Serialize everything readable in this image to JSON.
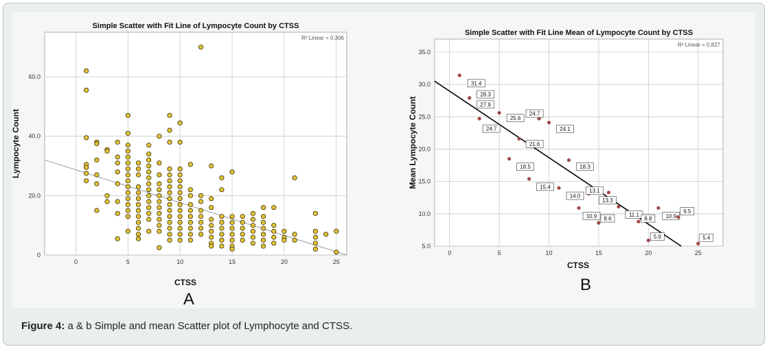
{
  "figure": {
    "caption_label": "Figure 4:",
    "caption_text": " a & b Simple and mean Scatter plot of Lymphocyte and CTSS.",
    "panel_a_letter": "A",
    "panel_b_letter": "B"
  },
  "colors": {
    "frame_bg": "#e9efeb",
    "plot_a_point": "#e0c23a",
    "plot_b_point": "#a04848",
    "grid": "#c8c8c8"
  },
  "chart_data": [
    {
      "type": "scatter",
      "title": "Simple Scatter with Fit Line of Lympocyte Count by CTSS",
      "xlabel": "CTSS",
      "ylabel": "Lympocyte Count",
      "xlim": [
        -3,
        26
      ],
      "ylim": [
        0,
        75
      ],
      "xticks": [
        0,
        5,
        10,
        15,
        20,
        25
      ],
      "yticks": [
        0,
        20,
        40,
        60
      ],
      "ytick_labels": [
        "0",
        "20.0",
        "40.0",
        "60.0"
      ],
      "grid": true,
      "annotation": "R² Linear = 0.306",
      "fit_line": {
        "x": [
          -3,
          26
        ],
        "y": [
          32,
          0
        ]
      },
      "points": [
        [
          1,
          62
        ],
        [
          1,
          55.5
        ],
        [
          1,
          39.5
        ],
        [
          1,
          30.5
        ],
        [
          1,
          29.5
        ],
        [
          1,
          27.5
        ],
        [
          1,
          25
        ],
        [
          2,
          38
        ],
        [
          2,
          37.5
        ],
        [
          2,
          32
        ],
        [
          2,
          27
        ],
        [
          2,
          24
        ],
        [
          2,
          15
        ],
        [
          3,
          35.5
        ],
        [
          3,
          35
        ],
        [
          3,
          20
        ],
        [
          3,
          18
        ],
        [
          4,
          38
        ],
        [
          4,
          33
        ],
        [
          4,
          31
        ],
        [
          4,
          28
        ],
        [
          4,
          24
        ],
        [
          4,
          18
        ],
        [
          4,
          14
        ],
        [
          4,
          5.5
        ],
        [
          5,
          47
        ],
        [
          5,
          41
        ],
        [
          5,
          37
        ],
        [
          5,
          35
        ],
        [
          5,
          33
        ],
        [
          5,
          31
        ],
        [
          5,
          29
        ],
        [
          5,
          27
        ],
        [
          5,
          25
        ],
        [
          5,
          23
        ],
        [
          5,
          21
        ],
        [
          5,
          19
        ],
        [
          5,
          17
        ],
        [
          5,
          15
        ],
        [
          5,
          13
        ],
        [
          5,
          8
        ],
        [
          6,
          31
        ],
        [
          6,
          29
        ],
        [
          6,
          27
        ],
        [
          6,
          23
        ],
        [
          6,
          21
        ],
        [
          6,
          19
        ],
        [
          6,
          17
        ],
        [
          6,
          15
        ],
        [
          6,
          13
        ],
        [
          6,
          11
        ],
        [
          6,
          9
        ],
        [
          6,
          7
        ],
        [
          6,
          5.5
        ],
        [
          7,
          37
        ],
        [
          7,
          34
        ],
        [
          7,
          32
        ],
        [
          7,
          30
        ],
        [
          7,
          28
        ],
        [
          7,
          26
        ],
        [
          7,
          24
        ],
        [
          7,
          22
        ],
        [
          7,
          20
        ],
        [
          7,
          18
        ],
        [
          7,
          16
        ],
        [
          7,
          14
        ],
        [
          7,
          12
        ],
        [
          7,
          8
        ],
        [
          8,
          40
        ],
        [
          8,
          31
        ],
        [
          8,
          27
        ],
        [
          8,
          24
        ],
        [
          8,
          22
        ],
        [
          8,
          20
        ],
        [
          8,
          18
        ],
        [
          8,
          16
        ],
        [
          8,
          14
        ],
        [
          8,
          12
        ],
        [
          8,
          10
        ],
        [
          8,
          8
        ],
        [
          8,
          2.5
        ],
        [
          9,
          47
        ],
        [
          9,
          42
        ],
        [
          9,
          38
        ],
        [
          9,
          29
        ],
        [
          9,
          27
        ],
        [
          9,
          25
        ],
        [
          9,
          23
        ],
        [
          9,
          21
        ],
        [
          9,
          19
        ],
        [
          9,
          17
        ],
        [
          9,
          15
        ],
        [
          9,
          13
        ],
        [
          9,
          11
        ],
        [
          9,
          9
        ],
        [
          9,
          7
        ],
        [
          9,
          5
        ],
        [
          10,
          44.5
        ],
        [
          10,
          38
        ],
        [
          10,
          29
        ],
        [
          10,
          27
        ],
        [
          10,
          25
        ],
        [
          10,
          23
        ],
        [
          10,
          21
        ],
        [
          10,
          19
        ],
        [
          10,
          17
        ],
        [
          10,
          15
        ],
        [
          10,
          13
        ],
        [
          10,
          11
        ],
        [
          10,
          9
        ],
        [
          10,
          7
        ],
        [
          10,
          5
        ],
        [
          11,
          30.5
        ],
        [
          11,
          22
        ],
        [
          11,
          20
        ],
        [
          11,
          17
        ],
        [
          11,
          15
        ],
        [
          11,
          13
        ],
        [
          11,
          11
        ],
        [
          11,
          9
        ],
        [
          11,
          7
        ],
        [
          11,
          5
        ],
        [
          12,
          70
        ],
        [
          12,
          20
        ],
        [
          12,
          18
        ],
        [
          12,
          15
        ],
        [
          12,
          13
        ],
        [
          12,
          11
        ],
        [
          12,
          9
        ],
        [
          12,
          7
        ],
        [
          13,
          30
        ],
        [
          13,
          19
        ],
        [
          13,
          16
        ],
        [
          13,
          12
        ],
        [
          13,
          10
        ],
        [
          13,
          8
        ],
        [
          13,
          6
        ],
        [
          13,
          4
        ],
        [
          13,
          3
        ],
        [
          14,
          26
        ],
        [
          14,
          22
        ],
        [
          14,
          13
        ],
        [
          14,
          11
        ],
        [
          14,
          9
        ],
        [
          14,
          7
        ],
        [
          14,
          5
        ],
        [
          14,
          3
        ],
        [
          15,
          28
        ],
        [
          15,
          13
        ],
        [
          15,
          11
        ],
        [
          15,
          9
        ],
        [
          15,
          7
        ],
        [
          15,
          5
        ],
        [
          15,
          3
        ],
        [
          15,
          2
        ],
        [
          16,
          13
        ],
        [
          16,
          11
        ],
        [
          16,
          9
        ],
        [
          16,
          7
        ],
        [
          16,
          5
        ],
        [
          17,
          14
        ],
        [
          17,
          12
        ],
        [
          17,
          10
        ],
        [
          17,
          8
        ],
        [
          17,
          6
        ],
        [
          17,
          4
        ],
        [
          18,
          16
        ],
        [
          18,
          13
        ],
        [
          18,
          11
        ],
        [
          18,
          9
        ],
        [
          18,
          7
        ],
        [
          18,
          5
        ],
        [
          18,
          3
        ],
        [
          19,
          16
        ],
        [
          19,
          10
        ],
        [
          19,
          8
        ],
        [
          19,
          6
        ],
        [
          19,
          4
        ],
        [
          20,
          8
        ],
        [
          20,
          6
        ],
        [
          20,
          5
        ],
        [
          21,
          26
        ],
        [
          21,
          7
        ],
        [
          21,
          5
        ],
        [
          23,
          14
        ],
        [
          23,
          8
        ],
        [
          23,
          6
        ],
        [
          23,
          4
        ],
        [
          23,
          2
        ],
        [
          24,
          7
        ],
        [
          25,
          8
        ],
        [
          25,
          1
        ]
      ]
    },
    {
      "type": "scatter",
      "title": "Simple Scatter with Fit Line Mean of Lympocyte Count by CTSS",
      "xlabel": "CTSS",
      "ylabel": "Mean Lympocyte Count",
      "xlim": [
        -1.5,
        27.5
      ],
      "ylim": [
        5,
        37
      ],
      "xticks": [
        0,
        5,
        10,
        15,
        20,
        25
      ],
      "yticks": [
        5,
        10,
        15,
        20,
        25,
        30,
        35
      ],
      "ytick_labels": [
        "5.0",
        "10.0",
        "15.0",
        "20.0",
        "25.0",
        "30.0",
        "35.0"
      ],
      "grid": true,
      "annotation": "R² Linear = 0.827",
      "fit_line": {
        "x": [
          -1.5,
          23.3
        ],
        "y": [
          30.5,
          5
        ]
      },
      "points": [
        {
          "x": 1,
          "y": 31.4,
          "label": "31.4"
        },
        {
          "x": 2,
          "y": 27.9,
          "label": "27.9"
        },
        {
          "x": 3,
          "y": 24.7,
          "label": "24.7"
        },
        {
          "x": 4,
          "y": 28.3,
          "label": "28.3"
        },
        {
          "x": 5,
          "y": 25.6,
          "label": "25.6"
        },
        {
          "x": 6,
          "y": 18.5,
          "label": "18.5"
        },
        {
          "x": 7,
          "y": 21.6,
          "label": "21.6"
        },
        {
          "x": 8,
          "y": 15.4,
          "label": "15.4"
        },
        {
          "x": 9,
          "y": 24.7,
          "label": "24.7"
        },
        {
          "x": 10,
          "y": 24.1,
          "label": "24.1"
        },
        {
          "x": 11,
          "y": 14.0,
          "label": "14.0"
        },
        {
          "x": 12,
          "y": 18.3,
          "label": "18.3"
        },
        {
          "x": 13,
          "y": 10.9,
          "label": "10.9"
        },
        {
          "x": 14,
          "y": 13.1,
          "label": "13.1"
        },
        {
          "x": 15,
          "y": 8.6,
          "label": "8.6"
        },
        {
          "x": 16,
          "y": 13.3,
          "label": "13.3"
        },
        {
          "x": 17,
          "y": 11.1,
          "label": "11.1"
        },
        {
          "x": 19,
          "y": 8.8,
          "label": "8.8"
        },
        {
          "x": 20,
          "y": 5.9,
          "label": "5.9"
        },
        {
          "x": 21,
          "y": 10.9,
          "label": "10.9"
        },
        {
          "x": 23,
          "y": 9.5,
          "label": "9.5"
        },
        {
          "x": 25,
          "y": 5.4,
          "label": "5.4"
        }
      ]
    }
  ]
}
